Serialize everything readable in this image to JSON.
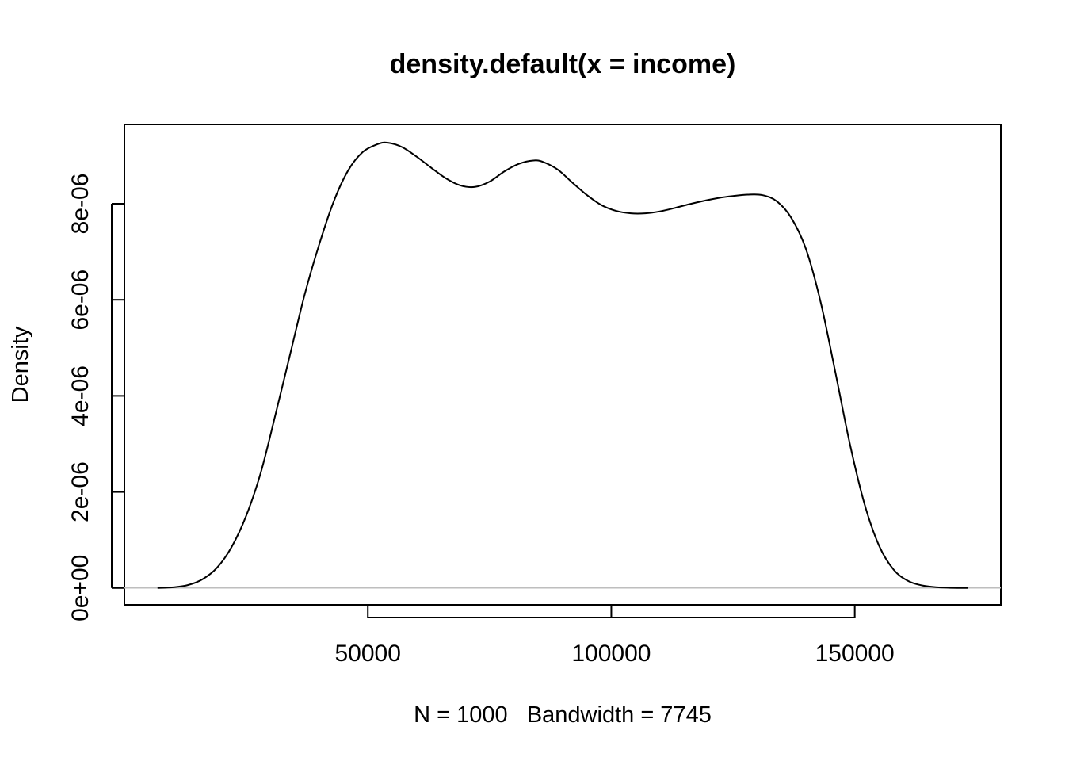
{
  "chart_data": {
    "type": "line",
    "title": "density.default(x = income)",
    "xlabel": "N = 1000   Bandwidth = 7745",
    "ylabel": "Density",
    "xlim": [
      0,
      180000
    ],
    "ylim": [
      -3.5e-07,
      9.65e-06
    ],
    "x_ticks": [
      50000,
      100000,
      150000
    ],
    "x_tick_labels": [
      "50000",
      "100000",
      "150000"
    ],
    "y_ticks": [
      0,
      2e-06,
      4e-06,
      6e-06,
      8e-06
    ],
    "y_tick_labels": [
      "0e+00",
      "2e-06",
      "4e-06",
      "6e-06",
      "8e-06"
    ],
    "grid": false,
    "baseline": 0,
    "colors": {
      "line": "#000000",
      "baseline": "#bebebe"
    },
    "series": [
      {
        "x": [
          6800,
          10000,
          13000,
          16000,
          19000,
          22000,
          25000,
          28000,
          31000,
          34000,
          37000,
          40000,
          43000,
          46000,
          49000,
          52000,
          54000,
          57000,
          60000,
          63000,
          66000,
          69000,
          72000,
          75000,
          78000,
          81000,
          84000,
          86000,
          89000,
          92000,
          95000,
          98000,
          101000,
          104000,
          107000,
          110000,
          113000,
          116000,
          119000,
          122000,
          125000,
          128000,
          131000,
          134000,
          137000,
          140000,
          143000,
          146000,
          149000,
          152000,
          155000,
          158000,
          161000,
          164000,
          167000,
          170000,
          173300
        ],
        "y": [
          0,
          1.5e-08,
          6e-08,
          1.8e-07,
          4.2e-07,
          8.5e-07,
          1.5e-06,
          2.4e-06,
          3.6e-06,
          4.85e-06,
          6.1e-06,
          7.15e-06,
          8.05e-06,
          8.7e-06,
          9.08e-06,
          9.24e-06,
          9.27e-06,
          9.18e-06,
          8.98e-06,
          8.75e-06,
          8.53e-06,
          8.38e-06,
          8.35e-06,
          8.46e-06,
          8.67e-06,
          8.83e-06,
          8.9e-06,
          8.87e-06,
          8.71e-06,
          8.44e-06,
          8.18e-06,
          7.97e-06,
          7.85e-06,
          7.8e-06,
          7.8e-06,
          7.84e-06,
          7.91e-06,
          7.99e-06,
          8.06e-06,
          8.12e-06,
          8.16e-06,
          8.19e-06,
          8.18e-06,
          8.05e-06,
          7.7e-06,
          7.05e-06,
          5.95e-06,
          4.5e-06,
          3e-06,
          1.75e-06,
          8.8e-07,
          3.8e-07,
          1.45e-07,
          5e-08,
          1.5e-08,
          3e-09,
          0
        ]
      }
    ]
  }
}
